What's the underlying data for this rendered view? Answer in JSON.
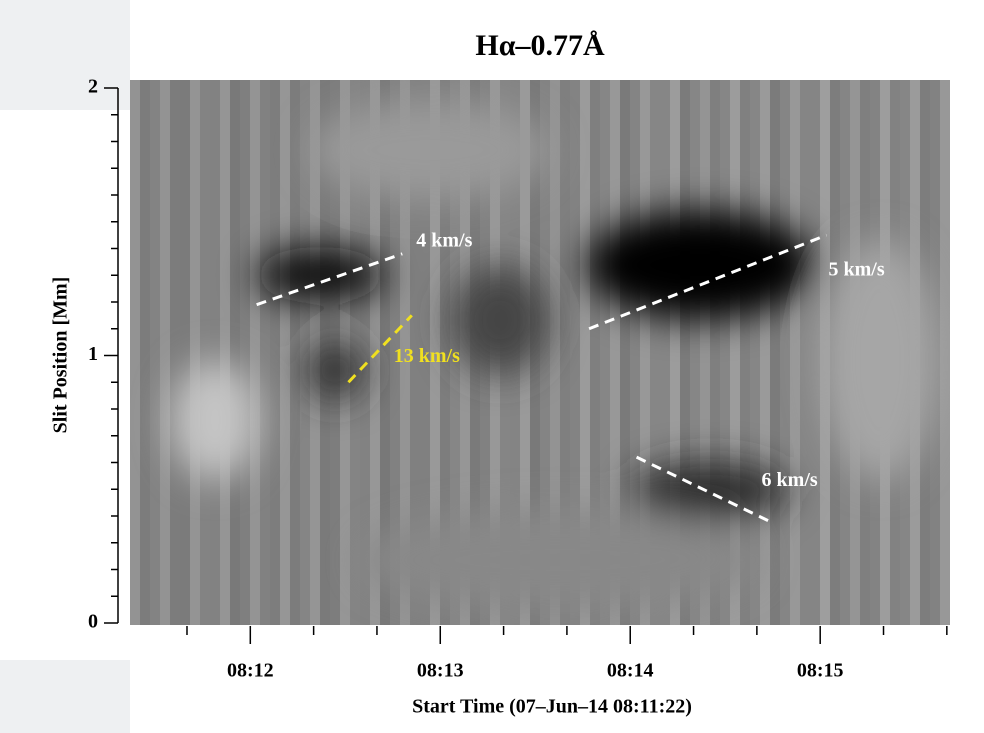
{
  "chart_data": {
    "type": "time-distance",
    "title": "Hα–0.77Å",
    "x_label": "Start Time (07–Jun–14 08:11:22)",
    "y_label": "Slit Position [Mm]",
    "xlim": [
      "08:11:22",
      "08:15:41"
    ],
    "xticks": [
      "08:12",
      "08:13",
      "08:14",
      "08:15"
    ],
    "xminorticks": [
      "08:11:40",
      "08:12:20",
      "08:12:40",
      "08:13:20",
      "08:13:40",
      "08:14:20",
      "08:14:40",
      "08:15:20",
      "08:15:40"
    ],
    "ylim": [
      0,
      2
    ],
    "yticks": [
      0,
      1,
      2
    ],
    "yminorticks": [
      0.1,
      0.2,
      0.3,
      0.4,
      0.5,
      0.6,
      0.7,
      0.8,
      0.9,
      1.1,
      1.2,
      1.3,
      1.4,
      1.5,
      1.6,
      1.7,
      1.8,
      1.9
    ],
    "annotations": [
      {
        "text": "4 km/s",
        "color": "#ffffff",
        "x": [
          "08:12:02",
          "08:12:48"
        ],
        "y": [
          1.19,
          1.38
        ]
      },
      {
        "text": "13 km/s",
        "color": "#f0e020",
        "x": [
          "08:12:31",
          "08:12:51"
        ],
        "y": [
          0.9,
          1.15
        ]
      },
      {
        "text": "5 km/s",
        "color": "#ffffff",
        "x": [
          "08:13:47",
          "08:15:02"
        ],
        "y": [
          1.1,
          1.45
        ]
      },
      {
        "text": "6 km/s",
        "color": "#ffffff",
        "x": [
          "08:14:02",
          "08:14:44"
        ],
        "y": [
          0.62,
          0.38
        ]
      }
    ]
  }
}
